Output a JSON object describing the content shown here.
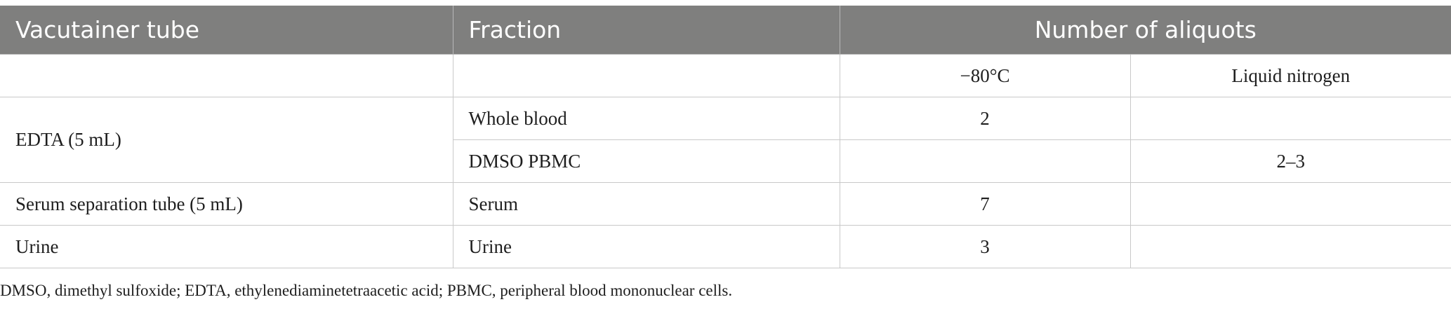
{
  "table": {
    "headers": {
      "col1": "Vacutainer tube",
      "col2": "Fraction",
      "col3": "Number of aliquots"
    },
    "subheaders": {
      "minus80": "−80°C",
      "liquid_nitrogen": "Liquid nitrogen"
    },
    "rows": {
      "edta": {
        "tube": "EDTA (5 mL)",
        "whole_blood": {
          "fraction": "Whole blood",
          "minus80": "2",
          "liquid_nitrogen": ""
        },
        "dmso_pbmc": {
          "fraction": "DMSO PBMC",
          "minus80": "",
          "liquid_nitrogen": "2–3"
        }
      },
      "serum": {
        "tube": "Serum separation tube (5 mL)",
        "fraction": "Serum",
        "minus80": "7",
        "liquid_nitrogen": ""
      },
      "urine": {
        "tube": "Urine",
        "fraction": "Urine",
        "minus80": "3",
        "liquid_nitrogen": ""
      }
    }
  },
  "footnote": "DMSO, dimethyl sulfoxide; EDTA, ethylenediaminetetraacetic acid; PBMC, peripheral blood mononuclear cells."
}
